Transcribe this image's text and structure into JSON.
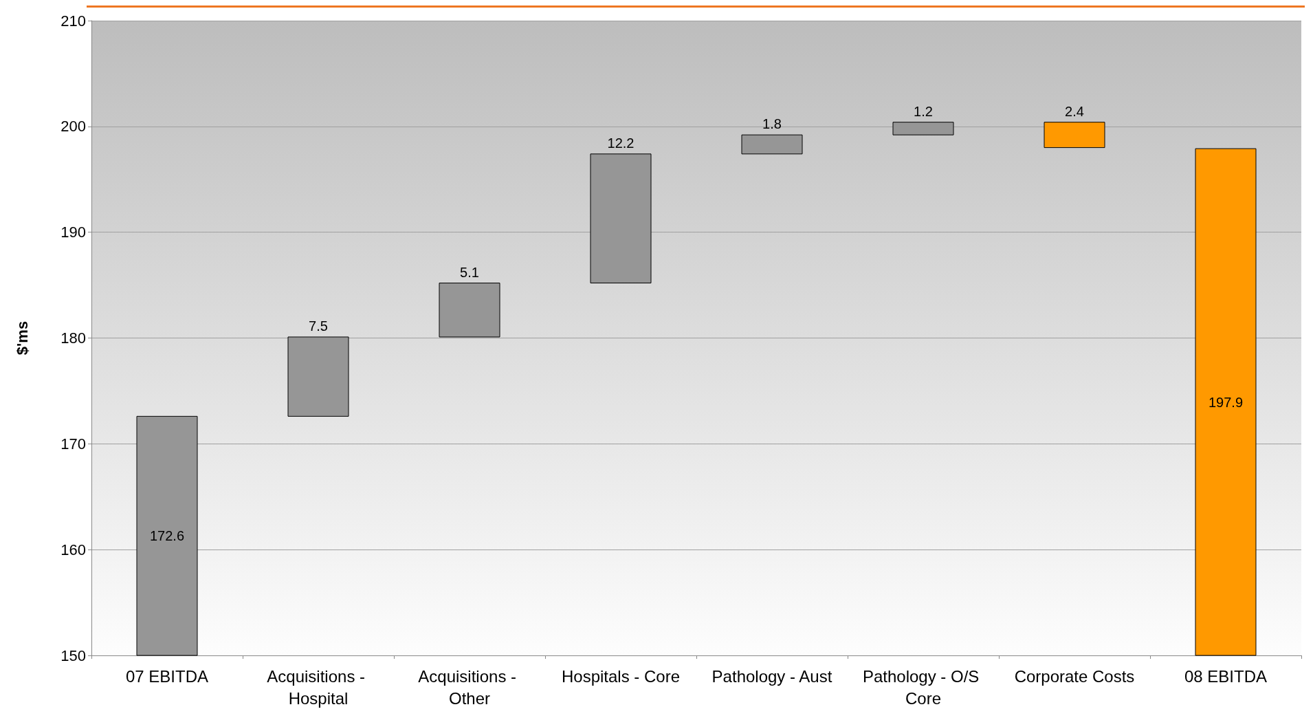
{
  "chart_data": {
    "type": "bar",
    "ylabel": "$'ms",
    "categories": [
      "07 EBITDA",
      "Acquisitions - Hospital",
      "Acquisitions - Other",
      "Hospitals - Core",
      "Pathology - Aust",
      "Pathology - O/S Core",
      "Corporate Costs",
      "08 EBITDA"
    ],
    "values": [
      172.6,
      7.5,
      5.1,
      12.2,
      1.8,
      1.2,
      -2.4,
      197.9
    ],
    "base": [
      null,
      172.6,
      180.1,
      185.2,
      197.4,
      199.2,
      200.4,
      null
    ],
    "colors": [
      "#969696",
      "#969696",
      "#969696",
      "#969696",
      "#969696",
      "#969696",
      "#ff9900",
      "#ff9900"
    ],
    "value_labels": [
      "172.6",
      "7.5",
      "5.1",
      "12.2",
      "1.8",
      "1.2",
      "2.4",
      "197.9"
    ],
    "ylim": [
      150,
      210
    ],
    "yticks": [
      150,
      160,
      170,
      180,
      190,
      200,
      210
    ],
    "grid": "y"
  }
}
